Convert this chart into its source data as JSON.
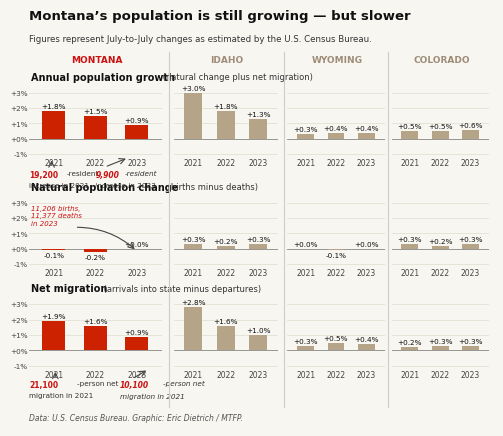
{
  "title": "Montana’s population is still growing — but slower",
  "subtitle": "Figures represent July-to-July changes as estimated by the U.S. Census Bureau.",
  "state_labels": [
    "MONTANA",
    "IDAHO",
    "WYOMING",
    "COLORADO"
  ],
  "state_label_colors": [
    "#cc1111",
    "#9e8c78",
    "#9e8c78",
    "#9e8c78"
  ],
  "years": [
    "2021",
    "2022",
    "2023"
  ],
  "sections": [
    {
      "title": "Annual population growth",
      "subtitle": " (natural change plus net migration)",
      "data": {
        "MONTANA": [
          1.8,
          1.5,
          0.9
        ],
        "IDAHO": [
          3.0,
          1.8,
          1.3
        ],
        "WYOMING": [
          0.3,
          0.4,
          0.4
        ],
        "COLORADO": [
          0.5,
          0.5,
          0.6
        ]
      }
    },
    {
      "title": "Natural population change",
      "subtitle": " (births minus deaths)",
      "data": {
        "MONTANA": [
          -0.1,
          -0.2,
          -0.0
        ],
        "IDAHO": [
          0.3,
          0.2,
          0.3
        ],
        "WYOMING": [
          -0.0,
          -0.1,
          0.0
        ],
        "COLORADO": [
          0.3,
          0.2,
          0.3
        ]
      }
    },
    {
      "title": "Net migration",
      "subtitle": " (arrivals into state minus departures)",
      "data": {
        "MONTANA": [
          1.9,
          1.6,
          0.9
        ],
        "IDAHO": [
          2.8,
          1.6,
          1.0
        ],
        "WYOMING": [
          0.3,
          0.5,
          0.4
        ],
        "COLORADO": [
          0.2,
          0.3,
          0.3
        ]
      }
    }
  ],
  "ylim": [
    -1.2,
    3.6
  ],
  "yticks": [
    -1,
    0,
    1,
    2,
    3
  ],
  "yticklabels": [
    "-1%",
    "+0%",
    "+1%",
    "+2%",
    "+3%"
  ],
  "bar_color_montana": "#cc2200",
  "bar_color_others": "#b5a488",
  "bg_color": "#f7f6f1",
  "sep_color": "#cccccc",
  "grid_color": "#ddddcc",
  "zero_line_color": "#888888",
  "footer": "Data: U.S. Census Bureau. Graphic: Eric Dietrich / MTFP."
}
